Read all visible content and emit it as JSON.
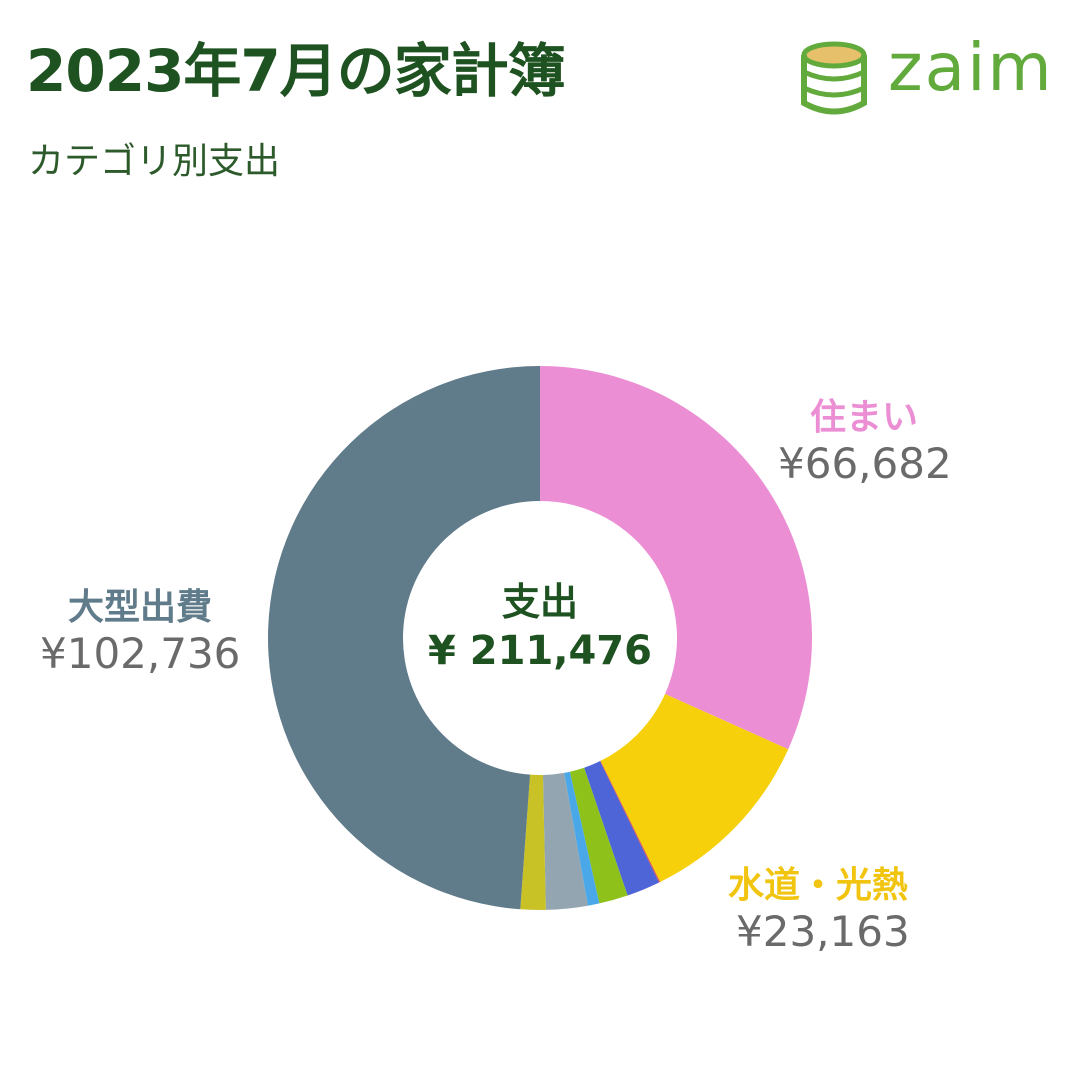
{
  "header": {
    "title": "2023年7月の家計簿",
    "subtitle": "カテゴリ別支出",
    "brand": "zaim"
  },
  "center": {
    "label": "支出",
    "total": "¥ 211,476"
  },
  "labels": [
    {
      "name": "住まい",
      "amount": "¥66,682",
      "color": "#ec8ed4"
    },
    {
      "name": "水道・光熱",
      "amount": "¥23,163",
      "color": "#f1c40f"
    },
    {
      "name": "大型出費",
      "amount": "¥102,736",
      "color": "#607b8a"
    }
  ],
  "chart_data": {
    "type": "pie",
    "donut": true,
    "currency": "¥",
    "total": 211476,
    "slices": [
      {
        "name": "住まい",
        "value": 66682,
        "color": "#ec8ed4"
      },
      {
        "name": "水道・光熱",
        "value": 23163,
        "color": "#f5d00b"
      },
      {
        "value": 150,
        "color": "#e05050"
      },
      {
        "value": 4200,
        "color": "#4e65d8"
      },
      {
        "value": 3600,
        "color": "#8ec21a"
      },
      {
        "value": 1450,
        "color": "#4aa8e8"
      },
      {
        "value": 5200,
        "color": "#92a5b0"
      },
      {
        "value": 3150,
        "color": "#c8c226"
      },
      {
        "name": "大型出費",
        "value": 102736,
        "color": "#607b8a"
      }
    ]
  }
}
